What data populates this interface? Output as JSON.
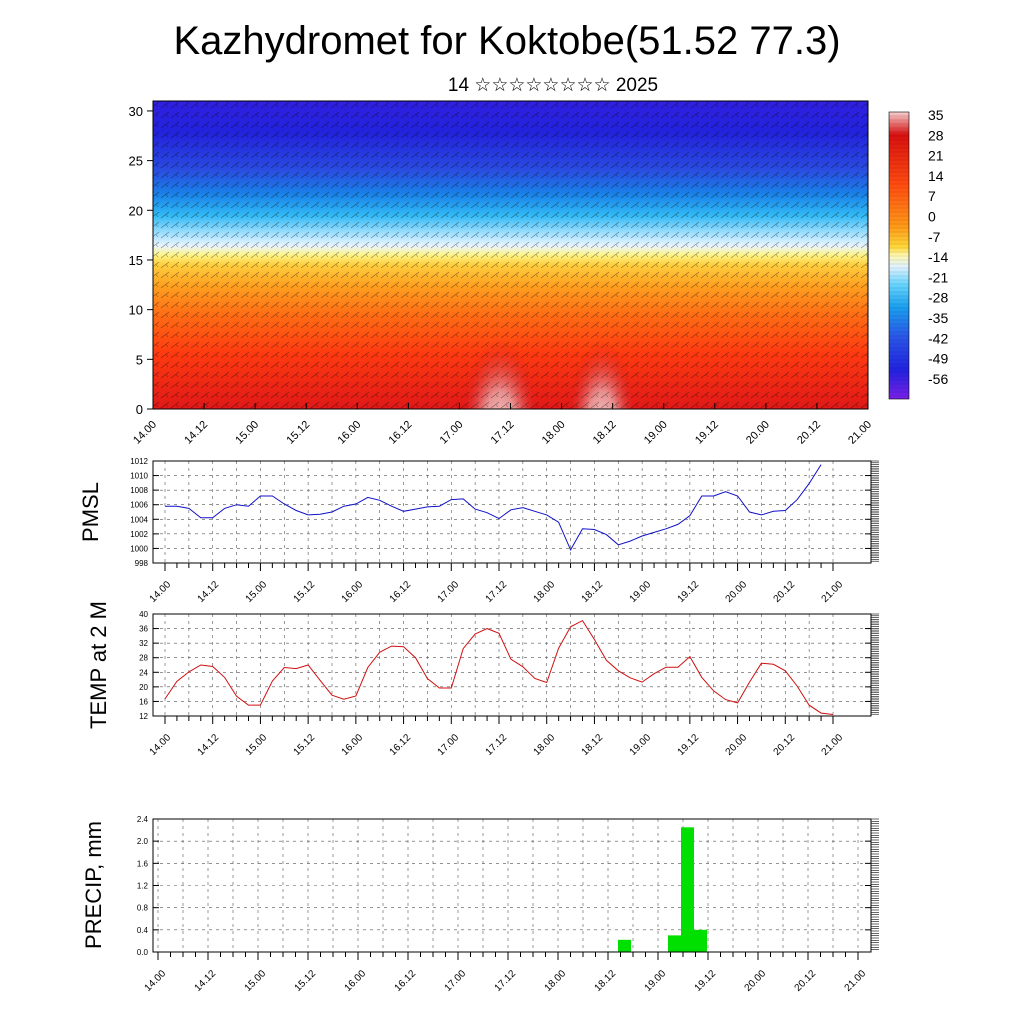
{
  "title": "Kazhydromet for Koktobe(51.52 77.3)",
  "subtitle": "14 ☆☆☆☆☆☆☆☆ 2025",
  "x_ticks": [
    "14.00",
    "14.12",
    "15.00",
    "15.12",
    "16.00",
    "16.12",
    "17.00",
    "17.12",
    "18.00",
    "18.12",
    "19.00",
    "19.12",
    "20.00",
    "20.12",
    "21.00"
  ],
  "colors": {
    "pmsl_line": "#1010c8",
    "temp_line": "#d01010",
    "precip_bar": "#00e000",
    "colormap": [
      "#f4c6c6",
      "#d81010",
      "#ff4a10",
      "#ff9a18",
      "#ffd030",
      "#fff488",
      "#d6ecff",
      "#5ad2ff",
      "#1aa0f0",
      "#2a58e8",
      "#2222e0",
      "#6a20e0"
    ]
  },
  "chart_data": [
    {
      "type": "heatmap",
      "title": "Kazhydromet for Koktobe(51.52 77.3)",
      "subtitle": "14 ☆☆☆☆☆☆☆☆ 2025",
      "ylim": [
        0,
        31
      ],
      "yticks": [
        0,
        5,
        10,
        15,
        20,
        25,
        30
      ],
      "colorbar_ticks": [
        35,
        28,
        21,
        14,
        7,
        0,
        -7,
        -14,
        -21,
        -28,
        -35,
        -42,
        -49,
        -56
      ],
      "description_values": {
        "levels": [
          0,
          5,
          10,
          15,
          20,
          25,
          30
        ],
        "mean_temperature": [
          28,
          20,
          10,
          -10,
          -40,
          -55,
          -58
        ]
      },
      "wind_barbs": true
    },
    {
      "type": "line",
      "ylabel": "PMSL",
      "ylim": [
        998,
        1012
      ],
      "yticks": [
        998,
        1000,
        1002,
        1004,
        1006,
        1008,
        1010,
        1012
      ],
      "grid": true,
      "series": [
        {
          "values": [
            1005.8,
            1005.8,
            1005.5,
            1004.2,
            1004.2,
            1005.5,
            1006,
            1005.8,
            1007.2,
            1007.2,
            1006.1,
            1005.2,
            1004.6,
            1004.7,
            1005,
            1005.8,
            1006.1,
            1007,
            1006.6,
            1005.8,
            1005.1,
            1005.4,
            1005.7,
            1005.8,
            1006.7,
            1006.8,
            1005.4,
            1004.9,
            1004.1,
            1005.3,
            1005.6,
            1005.1,
            1004.6,
            1003.6,
            999.8,
            1002.7,
            1002.6,
            1001.9,
            1000.5,
            1001,
            1001.7,
            1002.2,
            1002.7,
            1003.3,
            1004.5,
            1007.2,
            1007.2,
            1007.8,
            1007.2,
            1005,
            1004.6,
            1005.1,
            1005.2,
            1006.7,
            1008.9,
            1011.5
          ]
        }
      ]
    },
    {
      "type": "line",
      "ylabel": "TEMP at 2 M",
      "ylim": [
        12,
        40
      ],
      "yticks": [
        12,
        16,
        20,
        24,
        28,
        32,
        36,
        40
      ],
      "grid": true,
      "series": [
        {
          "values": [
            16.7,
            21.5,
            24.1,
            26,
            25.6,
            22.6,
            17.4,
            15,
            15,
            21.6,
            25.3,
            25,
            26,
            21.8,
            17.7,
            16.6,
            17.5,
            25.3,
            29.5,
            31.2,
            31,
            28,
            22.3,
            19.7,
            19.7,
            30.5,
            34.5,
            36,
            34.7,
            27.6,
            25.5,
            22.3,
            21.2,
            30.6,
            36.5,
            38.2,
            33,
            27.3,
            24.4,
            22.5,
            21.3,
            23.6,
            25.4,
            25.4,
            28.3,
            22.6,
            18.9,
            16.5,
            15.6,
            21.3,
            26.5,
            26.2,
            24.4,
            20.2,
            15,
            12.8,
            12.4
          ]
        }
      ]
    },
    {
      "type": "bar",
      "ylabel": "PRECIP, mm",
      "ylim": [
        0,
        2.4
      ],
      "yticks": [
        "0.0",
        "0.4",
        "0.8",
        "1.2",
        "1.6",
        "2.0",
        "2.4"
      ],
      "grid": true,
      "x": [
        "18.09",
        "18.12",
        "19.00",
        "19.03",
        "19.06"
      ],
      "values": [
        0.01,
        0.22,
        0.3,
        2.25,
        0.4
      ]
    }
  ]
}
